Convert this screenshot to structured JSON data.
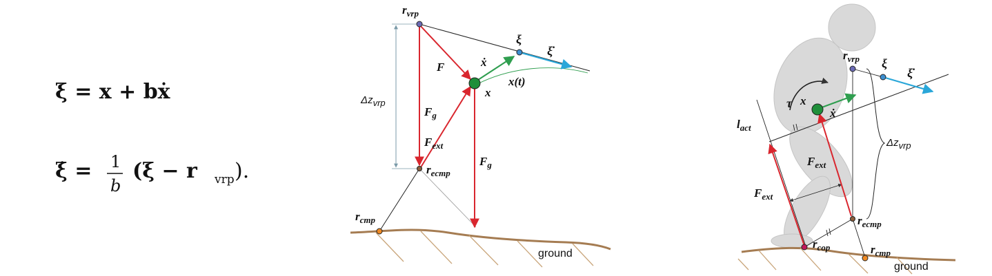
{
  "equations": {
    "eq1": "ξ = x + bẋ",
    "eq2_lhs": "ξ̇ =",
    "eq2_num": "1",
    "eq2_den": "b",
    "eq2_rhs": "(ξ − r",
    "eq2_rhs_sub": "vrp",
    "eq2_tail": ")."
  },
  "diagram_left": {
    "r_vrp": "r",
    "r_vrp_sub": "vrp",
    "xi": "ξ",
    "xi_dot": "ξ̇",
    "x_dot": "ẋ",
    "F": "F",
    "x_t": "x(t)",
    "x": "x",
    "dz_vrp": "Δz",
    "dz_vrp_sub": "vrp",
    "F_g": "F",
    "F_g_sub": "g",
    "F_ext": "F",
    "F_ext_sub": "ext",
    "F_g2": "F",
    "F_g2_sub": "g",
    "r_ecmp": "r",
    "r_ecmp_sub": "ecmp",
    "r_cmp": "r",
    "r_cmp_sub": "cmp",
    "ground": "ground"
  },
  "diagram_right": {
    "r_vrp": "r",
    "r_vrp_sub": "vrp",
    "xi": "ξ",
    "xi_dot": "ξ̇",
    "tau": "τ",
    "x": "x",
    "x_dot": "ẋ",
    "l_act": "l",
    "l_act_sub": "act",
    "F_ext": "F",
    "F_ext_sub": "ext",
    "dz_vrp": "Δz",
    "dz_vrp_sub": "vrp",
    "F_ext2": "F",
    "F_ext2_sub": "ext",
    "r_ecmp": "r",
    "r_ecmp_sub": "ecmp",
    "r_cop": "r",
    "r_cop_sub": "cop",
    "r_cmp": "r",
    "r_cmp_sub": "cmp",
    "ground": "ground"
  },
  "colors": {
    "force_red": "#d9262e",
    "velocity_green": "#2f9e4f",
    "xi_dot_blue": "#2aa7d9",
    "ground_brown": "#a57c52",
    "com_green": "#1f8f3a",
    "body_gray": "#d8d8d8"
  }
}
